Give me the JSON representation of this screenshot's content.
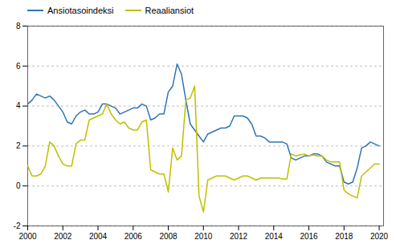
{
  "chart_data": {
    "type": "line",
    "x": [
      2000.0,
      2000.25,
      2000.5,
      2000.75,
      2001.0,
      2001.25,
      2001.5,
      2001.75,
      2002.0,
      2002.25,
      2002.5,
      2002.75,
      2003.0,
      2003.25,
      2003.5,
      2003.75,
      2004.0,
      2004.25,
      2004.5,
      2004.75,
      2005.0,
      2005.25,
      2005.5,
      2005.75,
      2006.0,
      2006.25,
      2006.5,
      2006.75,
      2007.0,
      2007.25,
      2007.5,
      2007.75,
      2008.0,
      2008.25,
      2008.5,
      2008.75,
      2009.0,
      2009.25,
      2009.5,
      2009.75,
      2010.0,
      2010.25,
      2010.5,
      2010.75,
      2011.0,
      2011.25,
      2011.5,
      2011.75,
      2012.0,
      2012.25,
      2012.5,
      2012.75,
      2013.0,
      2013.25,
      2013.5,
      2013.75,
      2014.0,
      2014.25,
      2014.5,
      2014.75,
      2015.0,
      2015.25,
      2015.5,
      2015.75,
      2016.0,
      2016.25,
      2016.5,
      2016.75,
      2017.0,
      2017.25,
      2017.5,
      2017.75,
      2018.0,
      2018.25,
      2018.5,
      2018.75,
      2019.0,
      2019.25,
      2019.5,
      2019.75,
      2020.0
    ],
    "series": [
      {
        "name": "Ansiotasoindeksi",
        "color": "#2E74B5",
        "values": [
          4.1,
          4.3,
          4.6,
          4.5,
          4.4,
          4.5,
          4.3,
          4.0,
          3.7,
          3.2,
          3.1,
          3.5,
          3.7,
          3.8,
          3.6,
          3.6,
          3.7,
          4.1,
          4.1,
          4.0,
          3.9,
          3.6,
          3.7,
          3.8,
          3.9,
          3.9,
          4.1,
          4.0,
          3.3,
          3.4,
          3.6,
          3.6,
          4.7,
          5.0,
          6.1,
          5.6,
          4.3,
          3.1,
          2.8,
          2.5,
          2.2,
          2.6,
          2.7,
          2.8,
          2.9,
          2.9,
          3.0,
          3.5,
          3.5,
          3.5,
          3.4,
          3.1,
          2.5,
          2.5,
          2.4,
          2.2,
          2.2,
          2.2,
          2.2,
          2.1,
          1.4,
          1.3,
          1.4,
          1.5,
          1.5,
          1.6,
          1.6,
          1.5,
          1.2,
          1.1,
          1.0,
          1.0,
          0.2,
          0.1,
          0.2,
          0.9,
          1.9,
          2.0,
          2.2,
          2.1,
          2.0
        ]
      },
      {
        "name": "Reaaliansiot",
        "color": "#BFBF00",
        "values": [
          1.0,
          0.5,
          0.5,
          0.6,
          1.0,
          2.2,
          2.0,
          1.5,
          1.1,
          1.0,
          1.0,
          2.1,
          2.3,
          2.3,
          3.3,
          3.4,
          3.5,
          3.6,
          4.1,
          3.6,
          3.3,
          3.1,
          3.2,
          2.9,
          2.8,
          2.8,
          3.2,
          3.3,
          0.8,
          0.7,
          0.6,
          0.6,
          -0.3,
          1.9,
          1.3,
          1.5,
          4.3,
          4.4,
          5.0,
          -0.5,
          -1.3,
          0.3,
          0.4,
          0.5,
          0.5,
          0.5,
          0.4,
          0.3,
          0.4,
          0.5,
          0.5,
          0.4,
          0.3,
          0.4,
          0.4,
          0.4,
          0.4,
          0.4,
          0.35,
          0.35,
          1.6,
          1.5,
          1.55,
          1.6,
          1.5,
          1.55,
          1.5,
          1.5,
          1.3,
          1.2,
          1.2,
          1.2,
          -0.2,
          -0.4,
          -0.5,
          -0.6,
          0.5,
          0.7,
          0.9,
          1.1,
          1.1
        ]
      }
    ],
    "xlim": [
      2000.0,
      2020.25
    ],
    "xticks": [
      2000,
      2002,
      2004,
      2006,
      2008,
      2010,
      2012,
      2014,
      2016,
      2018,
      2020
    ],
    "ylim": [
      -2,
      8
    ],
    "yticks": [
      -2,
      0,
      2,
      4,
      6,
      8
    ],
    "grid": true,
    "legend": "upper left"
  }
}
